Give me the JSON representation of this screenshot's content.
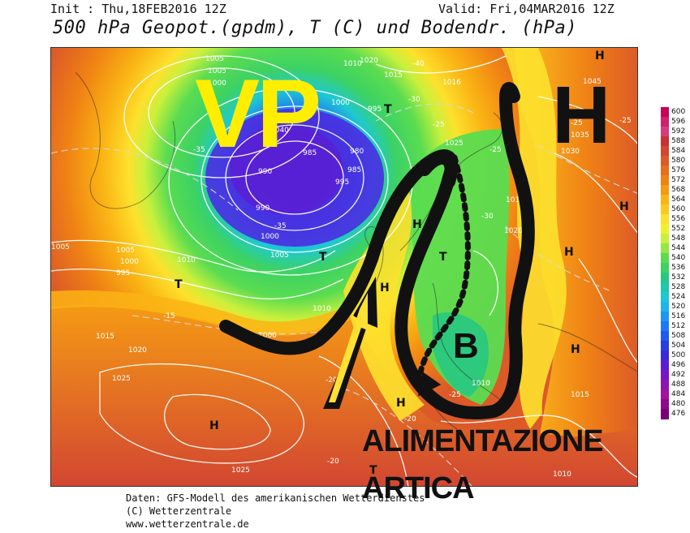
{
  "header": {
    "init": "Init : Thu,18FEB2016 12Z",
    "valid": "Valid: Fri,04MAR2016 12Z",
    "title": "500 hPa Geopot.(gpdm), T (C) und Bodendr. (hPa)"
  },
  "annotations": {
    "vp": "VP",
    "h": "H",
    "b": "B",
    "alimentazione": "ALIMENTAZIONE",
    "artica": "ARTICA"
  },
  "legend": {
    "levels": [
      {
        "label": "600",
        "color": "#c8005a"
      },
      {
        "label": "596",
        "color": "#d0206e"
      },
      {
        "label": "592",
        "color": "#d83a7e"
      },
      {
        "label": "588",
        "color": "#c83232"
      },
      {
        "label": "584",
        "color": "#d24632"
      },
      {
        "label": "580",
        "color": "#dc5a28"
      },
      {
        "label": "576",
        "color": "#e66e1e"
      },
      {
        "label": "572",
        "color": "#f08214"
      },
      {
        "label": "568",
        "color": "#f59a14"
      },
      {
        "label": "564",
        "color": "#fab414"
      },
      {
        "label": "560",
        "color": "#fcc81e"
      },
      {
        "label": "556",
        "color": "#fde12d"
      },
      {
        "label": "552",
        "color": "#f0f032"
      },
      {
        "label": "548",
        "color": "#c8f03c"
      },
      {
        "label": "544",
        "color": "#96e646"
      },
      {
        "label": "540",
        "color": "#5adc50"
      },
      {
        "label": "536",
        "color": "#3cd264"
      },
      {
        "label": "532",
        "color": "#28c882"
      },
      {
        "label": "528",
        "color": "#1ec8aa"
      },
      {
        "label": "524",
        "color": "#1ec8d2"
      },
      {
        "label": "520",
        "color": "#1eb4f0"
      },
      {
        "label": "516",
        "color": "#1e96f5"
      },
      {
        "label": "512",
        "color": "#1e78f5"
      },
      {
        "label": "508",
        "color": "#1e5af0"
      },
      {
        "label": "504",
        "color": "#283ce6"
      },
      {
        "label": "500",
        "color": "#3c28dc"
      },
      {
        "label": "496",
        "color": "#5a1ed2"
      },
      {
        "label": "492",
        "color": "#7814c8"
      },
      {
        "label": "488",
        "color": "#8c14b4"
      },
      {
        "label": "484",
        "color": "#a014a0"
      },
      {
        "label": "480",
        "color": "#8c0a8c"
      },
      {
        "label": "476",
        "color": "#780078"
      }
    ]
  },
  "contour_labels": [
    "1005",
    "1000",
    "1010",
    "1020",
    "1015",
    "1016",
    "1045",
    "1035",
    "1030",
    "1025",
    "995",
    "990",
    "985",
    "980",
    "-40",
    "-35",
    "-30",
    "-25",
    "-20",
    "-15",
    "1040"
  ],
  "pressure_markers": [
    "H",
    "T"
  ],
  "footer": {
    "line1": "Daten: GFS-Modell des amerikanischen Wetterdienstes",
    "line2": "(C) Wetterzentrale",
    "line3": "www.wetterzentrale.de"
  }
}
